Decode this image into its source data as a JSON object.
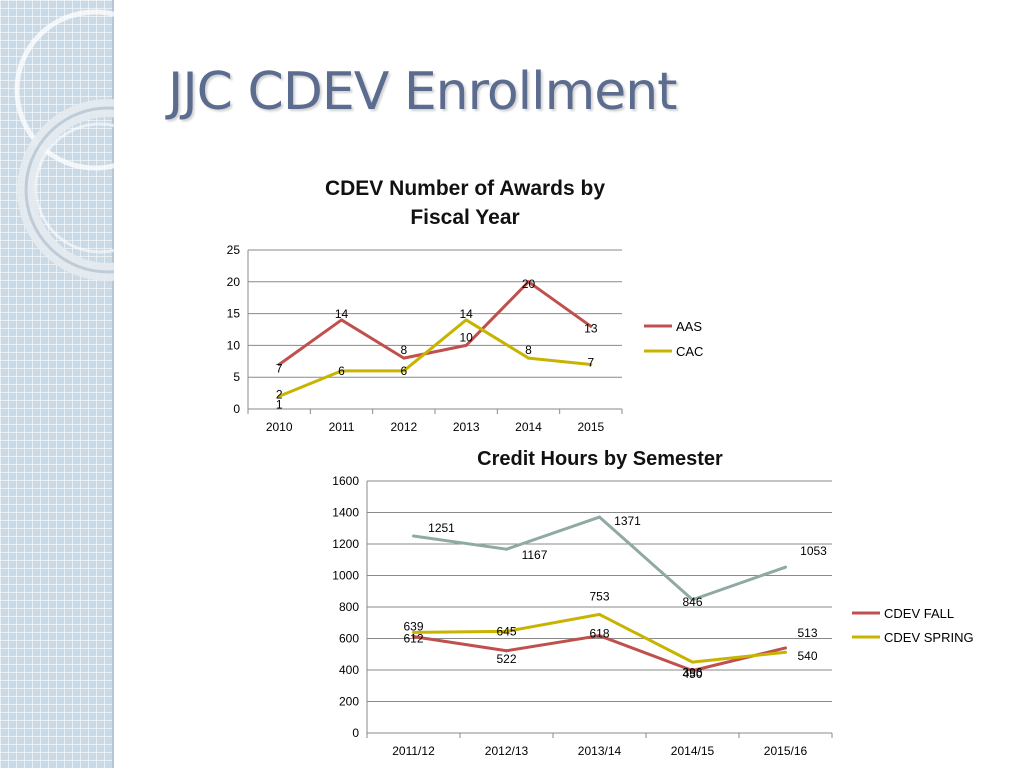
{
  "slide": {
    "title": "JJC CDEV Enrollment"
  },
  "chart_data": [
    {
      "type": "line",
      "title": "CDEV Number of Awards by Fiscal Year",
      "title_lines": [
        "CDEV Number of Awards by",
        "Fiscal Year"
      ],
      "categories": [
        "2010",
        "2011",
        "2012",
        "2013",
        "2014",
        "2015"
      ],
      "series": [
        {
          "name": "AAS",
          "values": [
            7,
            14,
            8,
            10,
            20,
            13
          ],
          "color": "#c0504d"
        },
        {
          "name": "CAC",
          "values": [
            2,
            6,
            6,
            14,
            8,
            7
          ],
          "color": "#c8b400"
        }
      ],
      "extra_data_labels": [
        {
          "category": "2010",
          "value": 1,
          "text": "1"
        }
      ],
      "ylim": [
        0,
        25
      ],
      "y_ticks": [
        0,
        5,
        10,
        15,
        20,
        25
      ],
      "grid": true,
      "legend_position": "right"
    },
    {
      "type": "line",
      "title": "Credit Hours by Semester",
      "categories": [
        "2011/12",
        "2012/13",
        "2013/14",
        "2014/15",
        "2015/16"
      ],
      "series": [
        {
          "name": "CDEV FALL",
          "values": [
            612,
            522,
            618,
            396,
            540
          ],
          "color": "#c0504d"
        },
        {
          "name": "CDEV SPRING",
          "values": [
            639,
            645,
            753,
            450,
            513
          ],
          "color": "#c8b400"
        },
        {
          "name": "",
          "values": [
            1251,
            1167,
            1371,
            846,
            1053
          ],
          "color": "#8fa9a5"
        }
      ],
      "ylim": [
        0,
        1600
      ],
      "y_ticks": [
        0,
        200,
        400,
        600,
        800,
        1000,
        1200,
        1400,
        1600
      ],
      "grid": true,
      "legend_position": "right"
    }
  ]
}
